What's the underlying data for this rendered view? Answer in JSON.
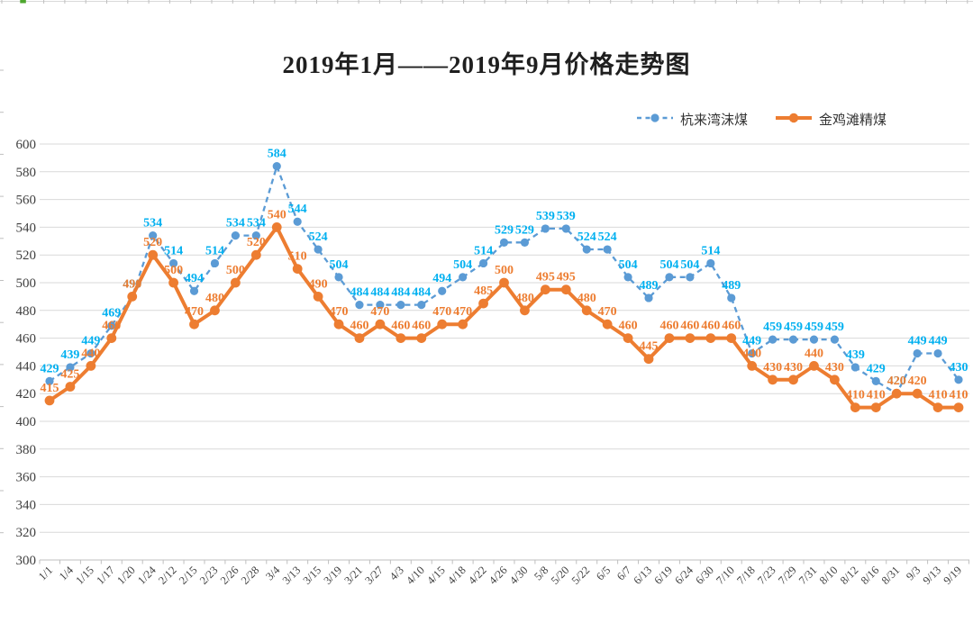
{
  "chart_data": {
    "type": "line",
    "title": "2019年1月——2019年9月价格走势图",
    "categories": [
      "1/1",
      "1/4",
      "1/15",
      "1/17",
      "1/20",
      "1/24",
      "2/12",
      "2/15",
      "2/23",
      "2/26",
      "2/28",
      "3/4",
      "3/13",
      "3/15",
      "3/19",
      "3/21",
      "3/27",
      "4/3",
      "4/10",
      "4/15",
      "4/18",
      "4/22",
      "4/26",
      "4/30",
      "5/8",
      "5/20",
      "5/22",
      "6/5",
      "6/7",
      "6/13",
      "6/19",
      "6/24",
      "6/30",
      "7/10",
      "7/18",
      "7/23",
      "7/29",
      "7/31",
      "8/10",
      "8/12",
      "8/16",
      "8/31",
      "9/3",
      "9/13",
      "9/19"
    ],
    "series": [
      {
        "name": "杭来湾沫煤",
        "style": "dashed",
        "color": "#5B9BD5",
        "label_color": "#00B0F0",
        "values": [
          429,
          439,
          449,
          469,
          490,
          534,
          514,
          494,
          514,
          534,
          534,
          584,
          544,
          524,
          504,
          484,
          484,
          484,
          484,
          494,
          504,
          514,
          529,
          529,
          539,
          539,
          524,
          524,
          504,
          489,
          504,
          504,
          514,
          489,
          449,
          459,
          459,
          459,
          459,
          439,
          429,
          420,
          449,
          449,
          430
        ]
      },
      {
        "name": "金鸡滩精煤",
        "style": "solid",
        "color": "#ED7D31",
        "label_color": "#ED7D31",
        "values": [
          415,
          425,
          440,
          460,
          490,
          520,
          500,
          470,
          480,
          500,
          520,
          540,
          510,
          490,
          470,
          460,
          470,
          460,
          460,
          470,
          470,
          485,
          500,
          480,
          495,
          495,
          480,
          470,
          460,
          445,
          460,
          460,
          460,
          460,
          440,
          430,
          430,
          440,
          430,
          410,
          410,
          420,
          420,
          410,
          410
        ]
      }
    ],
    "ylim": [
      300,
      600
    ],
    "ytick_step": 20,
    "yticks": [
      600,
      580,
      560,
      540,
      520,
      500,
      480,
      460,
      440,
      420,
      400,
      380,
      360,
      340,
      320,
      300
    ],
    "grid": true,
    "data_labels": true,
    "legend_position": "top-right"
  },
  "colors": {
    "grid": "#D9D9D9",
    "axis": "#BFBFBF",
    "tick": "#BFBFBF",
    "axis_text": "#3F3F3F",
    "sheet_edge": "#D9D9D9",
    "sheet_accent": "#4EA72E",
    "background": "#FFFFFF"
  }
}
